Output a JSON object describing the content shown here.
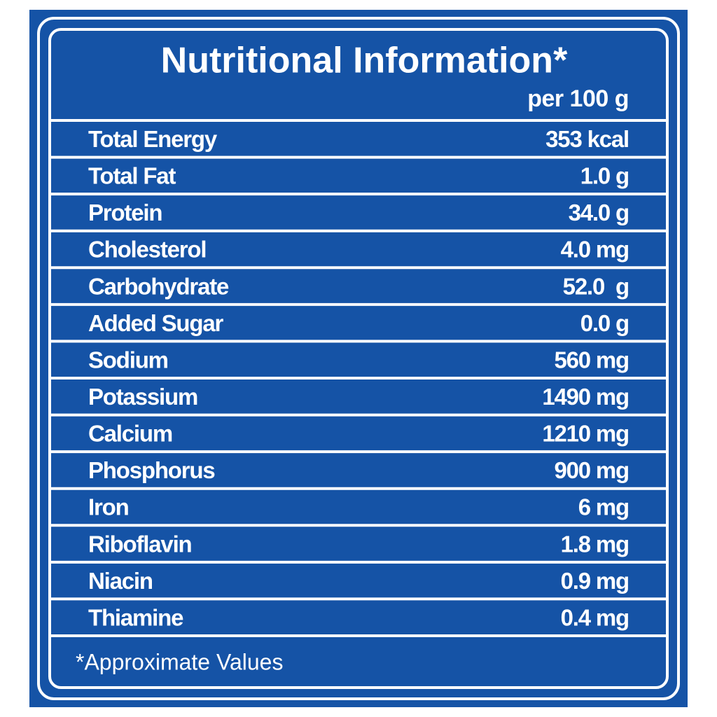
{
  "header": {
    "title": "Nutritional Information*",
    "basis": "per 100 g"
  },
  "table": {
    "rows": [
      [
        "Total Energy",
        "353 kcal"
      ],
      [
        "Total Fat",
        "1.0 g"
      ],
      [
        "Protein",
        "34.0 g"
      ],
      [
        "Cholesterol",
        "4.0 mg"
      ],
      [
        "Carbohydrate",
        "52.0  g"
      ],
      [
        "Added Sugar",
        "0.0 g"
      ],
      [
        "Sodium",
        "560 mg"
      ],
      [
        "Potassium",
        "1490 mg"
      ],
      [
        "Calcium",
        "1210 mg"
      ],
      [
        "Phosphorus",
        "900 mg"
      ],
      [
        "Iron",
        "6 mg"
      ],
      [
        "Riboflavin",
        "1.8 mg"
      ],
      [
        "Niacin",
        "0.9 mg"
      ],
      [
        "Thiamine",
        "0.4 mg"
      ]
    ]
  },
  "footnote": "*Approximate Values"
}
